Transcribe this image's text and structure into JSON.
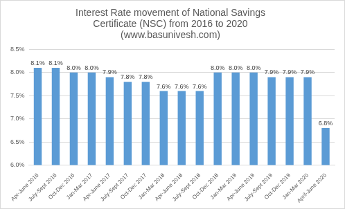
{
  "chart_data": {
    "type": "bar",
    "title": [
      "Interest Rate movement of National Savings",
      "Certificate (NSC) from 2016 to 2020",
      "(www.basunivesh.com)"
    ],
    "categories": [
      "Apr-June 2016",
      "July-Sept 2016",
      "Oct-Dec 2016",
      "Jan-Mar 2017",
      "Apr-June 2017",
      "July-Sept 2017",
      "Oct-Dec 2017",
      "Jan-Mar 2018",
      "Apr-June 2018",
      "July-Sept 2018",
      "Oct-Dec 2018",
      "Jan-Mar 2019",
      "Apr-June 2019",
      "July-Sept 2019",
      "Oct-Dec 2019",
      "Jan-Mar 2020",
      "April-June 2020"
    ],
    "values": [
      8.1,
      8.1,
      8.0,
      8.0,
      7.9,
      7.8,
      7.8,
      7.6,
      7.6,
      7.6,
      8.0,
      8.0,
      8.0,
      7.9,
      7.9,
      7.9,
      6.8
    ],
    "value_labels": [
      "8.1%",
      "8.1%",
      "8.0%",
      "8.0%",
      "7.9%",
      "7.8%",
      "7.8%",
      "7.6%",
      "7.6%",
      "7.6%",
      "8.0%",
      "8.0%",
      "8.0%",
      "7.9%",
      "7.9%",
      "7.9%",
      "6.8%"
    ],
    "color": "#5b9bd5",
    "ylim": [
      6.0,
      8.5
    ],
    "yticks": [
      {
        "value": 6.0,
        "label": "6.0%"
      },
      {
        "value": 6.5,
        "label": "6.5%"
      },
      {
        "value": 7.0,
        "label": "7.0%"
      },
      {
        "value": 7.5,
        "label": "7.5%"
      },
      {
        "value": 8.0,
        "label": "8.0%"
      },
      {
        "value": 8.5,
        "label": "8.5%"
      }
    ],
    "grid": true,
    "data_labels": true
  }
}
